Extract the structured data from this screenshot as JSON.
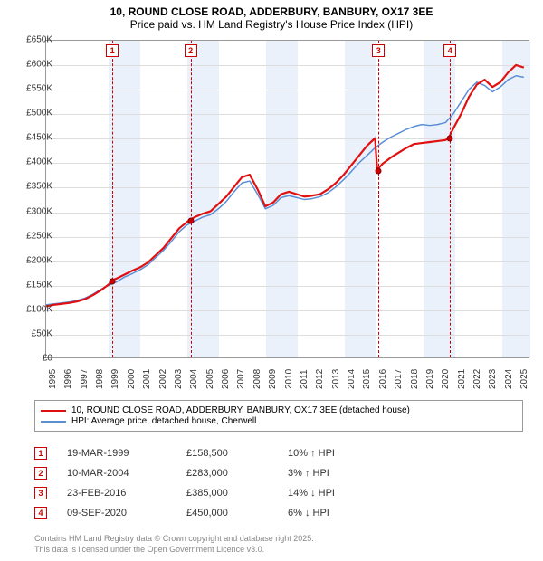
{
  "title": {
    "line1": "10, ROUND CLOSE ROAD, ADDERBURY, BANBURY, OX17 3EE",
    "line2": "Price paid vs. HM Land Registry's House Price Index (HPI)"
  },
  "chart": {
    "type": "line",
    "x_axis": {
      "min": 1995,
      "max": 2025.8,
      "ticks": [
        1995,
        1996,
        1997,
        1998,
        1999,
        2000,
        2001,
        2002,
        2003,
        2004,
        2005,
        2006,
        2007,
        2008,
        2009,
        2010,
        2011,
        2012,
        2013,
        2014,
        2015,
        2016,
        2017,
        2018,
        2019,
        2020,
        2021,
        2022,
        2023,
        2024,
        2025
      ]
    },
    "y_axis": {
      "min": 0,
      "max": 650000,
      "tick_step": 50000,
      "prefix": "£",
      "suffix": "K",
      "divisor": 1000
    },
    "background_color": "#ffffff",
    "grid_color": "#dddddd",
    "border_color": "#999999",
    "shade_color": "#eaf1fa",
    "shade_years": [
      1999,
      2000,
      2004,
      2005,
      2009,
      2010,
      2014,
      2015,
      2019,
      2020,
      2024,
      2025
    ],
    "series": [
      {
        "id": "property",
        "label": "10, ROUND CLOSE ROAD, ADDERBURY, BANBURY, OX17 3EE (detached house)",
        "color": "#e01010",
        "line_width": 2.2,
        "points": [
          [
            1995.0,
            105000
          ],
          [
            1995.5,
            108000
          ],
          [
            1996.0,
            110000
          ],
          [
            1996.5,
            112000
          ],
          [
            1997.0,
            115000
          ],
          [
            1997.5,
            120000
          ],
          [
            1998.0,
            128000
          ],
          [
            1998.5,
            138000
          ],
          [
            1999.0,
            150000
          ],
          [
            1999.21,
            158500
          ],
          [
            1999.5,
            162000
          ],
          [
            2000.0,
            170000
          ],
          [
            2000.5,
            178000
          ],
          [
            2001.0,
            185000
          ],
          [
            2001.5,
            195000
          ],
          [
            2002.0,
            210000
          ],
          [
            2002.5,
            225000
          ],
          [
            2003.0,
            245000
          ],
          [
            2003.5,
            265000
          ],
          [
            2004.0,
            278000
          ],
          [
            2004.19,
            283000
          ],
          [
            2004.5,
            288000
          ],
          [
            2005.0,
            295000
          ],
          [
            2005.5,
            300000
          ],
          [
            2006.0,
            315000
          ],
          [
            2006.5,
            330000
          ],
          [
            2007.0,
            350000
          ],
          [
            2007.5,
            370000
          ],
          [
            2008.0,
            375000
          ],
          [
            2008.5,
            345000
          ],
          [
            2009.0,
            310000
          ],
          [
            2009.5,
            318000
          ],
          [
            2010.0,
            335000
          ],
          [
            2010.5,
            340000
          ],
          [
            2011.0,
            335000
          ],
          [
            2011.5,
            330000
          ],
          [
            2012.0,
            332000
          ],
          [
            2012.5,
            335000
          ],
          [
            2013.0,
            345000
          ],
          [
            2013.5,
            358000
          ],
          [
            2014.0,
            375000
          ],
          [
            2014.5,
            395000
          ],
          [
            2015.0,
            415000
          ],
          [
            2015.5,
            435000
          ],
          [
            2016.0,
            450000
          ],
          [
            2016.14,
            385000
          ],
          [
            2016.5,
            398000
          ],
          [
            2017.0,
            410000
          ],
          [
            2017.5,
            420000
          ],
          [
            2018.0,
            430000
          ],
          [
            2018.5,
            438000
          ],
          [
            2019.0,
            440000
          ],
          [
            2019.5,
            442000
          ],
          [
            2020.0,
            444000
          ],
          [
            2020.5,
            446000
          ],
          [
            2020.69,
            450000
          ],
          [
            2021.0,
            470000
          ],
          [
            2021.5,
            500000
          ],
          [
            2022.0,
            535000
          ],
          [
            2022.5,
            560000
          ],
          [
            2023.0,
            570000
          ],
          [
            2023.5,
            555000
          ],
          [
            2024.0,
            565000
          ],
          [
            2024.5,
            585000
          ],
          [
            2025.0,
            600000
          ],
          [
            2025.5,
            595000
          ]
        ]
      },
      {
        "id": "hpi",
        "label": "HPI: Average price, detached house, Cherwell",
        "color": "#5a8fd6",
        "line_width": 1.5,
        "points": [
          [
            1995.0,
            108000
          ],
          [
            1995.5,
            110000
          ],
          [
            1996.0,
            112000
          ],
          [
            1996.5,
            114000
          ],
          [
            1997.0,
            117000
          ],
          [
            1997.5,
            122000
          ],
          [
            1998.0,
            130000
          ],
          [
            1998.5,
            140000
          ],
          [
            1999.0,
            148000
          ],
          [
            1999.5,
            155000
          ],
          [
            2000.0,
            165000
          ],
          [
            2000.5,
            172000
          ],
          [
            2001.0,
            180000
          ],
          [
            2001.5,
            190000
          ],
          [
            2002.0,
            205000
          ],
          [
            2002.5,
            220000
          ],
          [
            2003.0,
            238000
          ],
          [
            2003.5,
            258000
          ],
          [
            2004.0,
            272000
          ],
          [
            2004.5,
            280000
          ],
          [
            2005.0,
            288000
          ],
          [
            2005.5,
            293000
          ],
          [
            2006.0,
            305000
          ],
          [
            2006.5,
            320000
          ],
          [
            2007.0,
            340000
          ],
          [
            2007.5,
            358000
          ],
          [
            2008.0,
            362000
          ],
          [
            2008.5,
            335000
          ],
          [
            2009.0,
            305000
          ],
          [
            2009.5,
            312000
          ],
          [
            2010.0,
            328000
          ],
          [
            2010.5,
            332000
          ],
          [
            2011.0,
            328000
          ],
          [
            2011.5,
            324000
          ],
          [
            2012.0,
            326000
          ],
          [
            2012.5,
            330000
          ],
          [
            2013.0,
            338000
          ],
          [
            2013.5,
            350000
          ],
          [
            2014.0,
            365000
          ],
          [
            2014.5,
            382000
          ],
          [
            2015.0,
            400000
          ],
          [
            2015.5,
            415000
          ],
          [
            2016.0,
            430000
          ],
          [
            2016.5,
            442000
          ],
          [
            2017.0,
            452000
          ],
          [
            2017.5,
            460000
          ],
          [
            2018.0,
            468000
          ],
          [
            2018.5,
            474000
          ],
          [
            2019.0,
            478000
          ],
          [
            2019.5,
            476000
          ],
          [
            2020.0,
            478000
          ],
          [
            2020.5,
            482000
          ],
          [
            2021.0,
            500000
          ],
          [
            2021.5,
            525000
          ],
          [
            2022.0,
            550000
          ],
          [
            2022.5,
            565000
          ],
          [
            2023.0,
            558000
          ],
          [
            2023.5,
            545000
          ],
          [
            2024.0,
            555000
          ],
          [
            2024.5,
            570000
          ],
          [
            2025.0,
            578000
          ],
          [
            2025.5,
            575000
          ]
        ]
      }
    ],
    "sale_markers": [
      {
        "n": "1",
        "year": 1999.21,
        "price": 158500
      },
      {
        "n": "2",
        "year": 2004.19,
        "price": 283000
      },
      {
        "n": "3",
        "year": 2016.14,
        "price": 385000
      },
      {
        "n": "4",
        "year": 2020.69,
        "price": 450000
      }
    ]
  },
  "legend": {
    "row1_label": "10, ROUND CLOSE ROAD, ADDERBURY, BANBURY, OX17 3EE (detached house)",
    "row2_label": "HPI: Average price, detached house, Cherwell"
  },
  "sales": [
    {
      "n": "1",
      "date": "19-MAR-1999",
      "price": "£158,500",
      "delta": "10% ↑ HPI"
    },
    {
      "n": "2",
      "date": "10-MAR-2004",
      "price": "£283,000",
      "delta": "3% ↑ HPI"
    },
    {
      "n": "3",
      "date": "23-FEB-2016",
      "price": "£385,000",
      "delta": "14% ↓ HPI"
    },
    {
      "n": "4",
      "date": "09-SEP-2020",
      "price": "£450,000",
      "delta": "6% ↓ HPI"
    }
  ],
  "license": {
    "line1": "Contains HM Land Registry data © Crown copyright and database right 2025.",
    "line2": "This data is licensed under the Open Government Licence v3.0."
  }
}
